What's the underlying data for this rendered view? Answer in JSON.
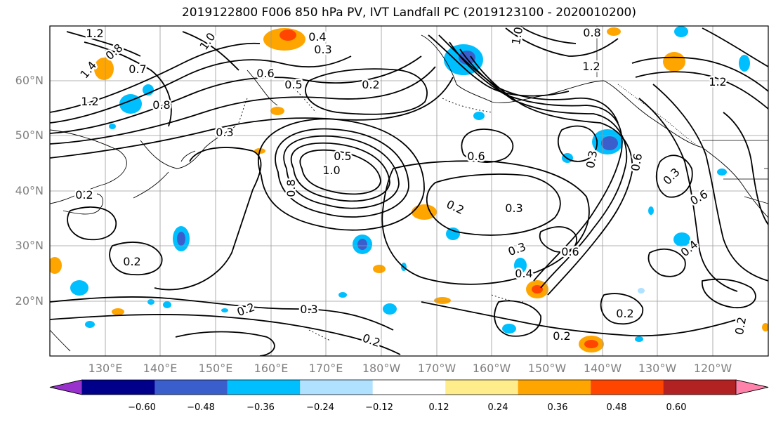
{
  "title": "2019122800 F006 850 hPa PV, IVT Landfall PC (2019123100 - 2020010200)",
  "map": {
    "lat_labels": [
      "60°N",
      "50°N",
      "40°N",
      "30°N",
      "20°N"
    ],
    "lon_labels": [
      "130°E",
      "140°E",
      "150°E",
      "160°E",
      "170°E",
      "180°W",
      "170°W",
      "160°W",
      "150°W",
      "140°W",
      "130°W",
      "120°W"
    ],
    "contour_labels": [
      "1.2",
      "1.0",
      "0.8",
      "0.7",
      "0.6",
      "0.5",
      "0.4",
      "0.3",
      "0.2",
      "1.4",
      "1.2",
      "0.8",
      "0.2",
      "0.3",
      "0.5",
      "1.0",
      "0.8",
      "0.2",
      "0.3",
      "0.6",
      "0.3",
      "0.6",
      "0.2",
      "0.4",
      "0.3",
      "0.2",
      "0.2",
      "0.2",
      "0.2",
      "0.3",
      "0.6",
      "0.4",
      "0.6",
      "0.3",
      "0.2",
      "1.2",
      "1.0",
      "1.2",
      "0.8"
    ],
    "contour_color": "#000000",
    "coast_color": "#000000",
    "grid_color": "#9a9a9a"
  },
  "colorbar": {
    "tick_labels": [
      "−0.60",
      "−0.48",
      "−0.36",
      "−0.24",
      "−0.12",
      "0.12",
      "0.24",
      "0.36",
      "0.48",
      "0.60"
    ],
    "colors": [
      "#9932cc",
      "#00008b",
      "#3a5fcd",
      "#00bfff",
      "#b0e2ff",
      "#ffffff",
      "#ffec8b",
      "#ffa500",
      "#ff4500",
      "#b22222",
      "#ff82ab"
    ]
  }
}
